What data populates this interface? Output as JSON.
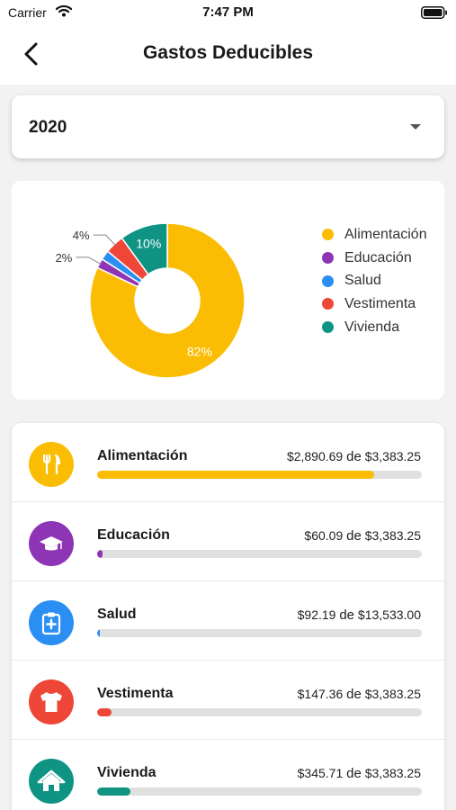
{
  "status_bar": {
    "carrier": "Carrier",
    "time": "7:47 PM"
  },
  "header": {
    "title": "Gastos Deducibles"
  },
  "year_select": {
    "value": "2020"
  },
  "chart_data": {
    "type": "pie",
    "categories": [
      "Alimentación",
      "Educación",
      "Salud",
      "Vestimenta",
      "Vivienda"
    ],
    "values": [
      82,
      2,
      2,
      4,
      10
    ],
    "labels": [
      "82%",
      "2%",
      "",
      "4%",
      "10%"
    ],
    "colors": [
      "#fbbd04",
      "#8e35b5",
      "#2a8ef2",
      "#ee4637",
      "#0f9484"
    ],
    "donut": true,
    "legend_position": "right"
  },
  "legend": [
    {
      "label": "Alimentación",
      "color": "#fbbd04"
    },
    {
      "label": "Educación",
      "color": "#8e35b5"
    },
    {
      "label": "Salud",
      "color": "#2a8ef2"
    },
    {
      "label": "Vestimenta",
      "color": "#ee4637"
    },
    {
      "label": "Vivienda",
      "color": "#0f9484"
    }
  ],
  "expenses": [
    {
      "name": "Alimentación",
      "spent": "$2,890.69",
      "de": "de",
      "limit": "$3,383.25",
      "progress": 0.854,
      "color": "#fbbd04",
      "icon": "fork-knife-icon"
    },
    {
      "name": "Educación",
      "spent": "$60.09",
      "de": "de",
      "limit": "$3,383.25",
      "progress": 0.018,
      "color": "#8e35b5",
      "icon": "graduation-cap-icon"
    },
    {
      "name": "Salud",
      "spent": "$92.19",
      "de": "de",
      "limit": "$13,533.00",
      "progress": 0.007,
      "color": "#2a8ef2",
      "icon": "medical-clipboard-icon"
    },
    {
      "name": "Vestimenta",
      "spent": "$147.36",
      "de": "de",
      "limit": "$3,383.25",
      "progress": 0.044,
      "color": "#ee4637",
      "icon": "shirt-icon"
    },
    {
      "name": "Vivienda",
      "spent": "$345.71",
      "de": "de",
      "limit": "$3,383.25",
      "progress": 0.102,
      "color": "#0f9484",
      "icon": "house-icon"
    }
  ]
}
